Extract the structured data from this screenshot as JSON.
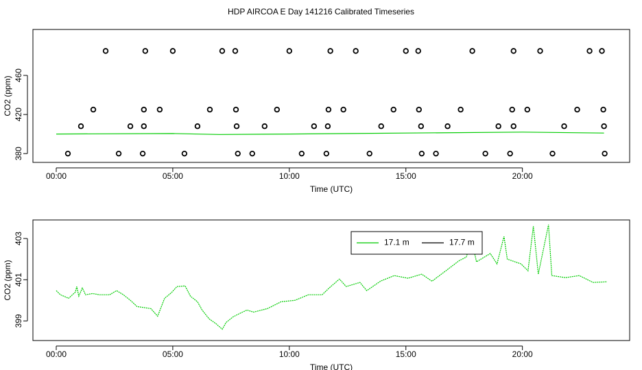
{
  "chart_data": [
    {
      "type": "scatter",
      "title": "HDP AIRCOA E  Day 141216  Calibrated Timeseries",
      "xlabel": "Time (UTC)",
      "ylabel": "CO2 (ppm)",
      "xlim": [
        -1.0,
        24.6
      ],
      "ylim": [
        371,
        507
      ],
      "xticks": [
        {
          "value": 0,
          "label": "00:00"
        },
        {
          "value": 5,
          "label": "05:00"
        },
        {
          "value": 10,
          "label": "10:00"
        },
        {
          "value": 15,
          "label": "15:00"
        },
        {
          "value": 20,
          "label": "20:00"
        }
      ],
      "yticks": [
        380,
        420,
        460
      ],
      "marker_color": "#000000",
      "x": [
        0.5,
        2.68,
        3.71,
        5.5,
        7.79,
        8.41,
        10.53,
        11.59,
        13.44,
        15.68,
        16.29,
        18.41,
        19.47,
        21.29,
        23.53,
        1.06,
        3.18,
        3.76,
        6.06,
        7.74,
        8.94,
        11.06,
        11.65,
        13.94,
        15.65,
        16.79,
        18.97,
        19.62,
        21.79,
        23.5,
        1.59,
        3.76,
        4.44,
        6.59,
        7.71,
        9.47,
        11.68,
        12.32,
        14.47,
        15.56,
        17.35,
        19.56,
        20.21,
        22.35,
        23.47,
        2.12,
        3.82,
        5.0,
        7.12,
        7.68,
        10.0,
        11.76,
        12.85,
        15.0,
        15.53,
        17.85,
        19.62,
        20.76,
        22.88,
        23.41
      ],
      "values": [
        380,
        380,
        380,
        380,
        380,
        380,
        380,
        380,
        380,
        380,
        380,
        380,
        380,
        380,
        380,
        408,
        408,
        408,
        408,
        408,
        408,
        408,
        408,
        408,
        408,
        408,
        408,
        408,
        408,
        408,
        425,
        425,
        425,
        425,
        425,
        425,
        425,
        425,
        425,
        425,
        425,
        425,
        425,
        425,
        425,
        485,
        485,
        485,
        485,
        485,
        485,
        485,
        485,
        485,
        485,
        485,
        485,
        485,
        485,
        485
      ],
      "line_color": "#00cc00",
      "line_x": [
        0,
        5,
        7,
        10,
        15,
        20,
        23.5
      ],
      "line_values": [
        400,
        400.5,
        399.5,
        400,
        401,
        402,
        401
      ]
    },
    {
      "type": "line",
      "xlabel": "Time (UTC)",
      "ylabel": "CO2 (ppm)",
      "xlim": [
        -1.0,
        24.6
      ],
      "ylim": [
        398.05,
        403.9
      ],
      "xticks": [
        {
          "value": 0,
          "label": "00:00"
        },
        {
          "value": 5,
          "label": "05:00"
        },
        {
          "value": 10,
          "label": "10:00"
        },
        {
          "value": 15,
          "label": "15:00"
        },
        {
          "value": 20,
          "label": "20:00"
        }
      ],
      "yticks": [
        399,
        401,
        403
      ],
      "legend": "top-right",
      "x": [
        0,
        0.18,
        0.53,
        0.82,
        0.88,
        0.97,
        1.12,
        1.26,
        1.56,
        1.85,
        2.29,
        2.59,
        2.88,
        3.18,
        3.47,
        4.06,
        4.35,
        4.65,
        4.94,
        5.18,
        5.53,
        5.76,
        6.06,
        6.26,
        6.56,
        6.85,
        7.12,
        7.29,
        7.59,
        7.88,
        8.18,
        8.47,
        9.06,
        9.65,
        10.24,
        10.82,
        11.41,
        11.71,
        12.15,
        12.44,
        13.03,
        13.32,
        13.91,
        14.5,
        15.09,
        15.68,
        16.12,
        16.71,
        17.29,
        17.59,
        17.82,
        18.03,
        18.62,
        18.91,
        19.21,
        19.35,
        19.94,
        20.24,
        20.47,
        20.68,
        21.12,
        21.26,
        21.85,
        22.44,
        23.03,
        23.62
      ],
      "series": [
        {
          "name": "17.1 m",
          "color": "#00cc00",
          "values": [
            400.47,
            400.27,
            400.1,
            400.4,
            400.67,
            400.2,
            400.6,
            400.27,
            400.33,
            400.27,
            400.27,
            400.47,
            400.27,
            400.0,
            399.7,
            399.6,
            399.23,
            400.1,
            400.37,
            400.67,
            400.7,
            400.2,
            399.93,
            399.53,
            399.1,
            398.87,
            398.6,
            398.93,
            399.2,
            399.37,
            399.53,
            399.43,
            399.6,
            399.93,
            400.0,
            400.27,
            400.27,
            400.6,
            401.03,
            400.67,
            400.87,
            400.47,
            400.93,
            401.2,
            401.07,
            401.27,
            400.93,
            401.43,
            401.93,
            402.1,
            402.93,
            401.87,
            402.27,
            401.77,
            403.1,
            402.0,
            401.77,
            401.43,
            403.6,
            401.27,
            403.67,
            401.2,
            401.1,
            401.2,
            400.87,
            400.9
          ]
        },
        {
          "name": "17.7 m",
          "color": "#000000",
          "values": [
            null,
            null,
            null,
            null,
            null,
            null,
            null,
            null,
            null,
            null,
            null,
            null,
            null,
            null,
            null,
            null,
            null,
            null,
            null,
            null,
            null,
            null,
            null,
            null,
            null,
            null,
            null,
            null,
            null,
            null,
            null,
            null,
            null,
            null,
            null,
            null,
            null,
            null,
            null,
            null,
            null,
            null,
            null,
            null,
            null,
            null,
            null,
            null,
            null,
            null,
            null,
            null,
            null,
            null,
            null,
            null,
            null,
            null,
            null,
            null,
            null,
            null,
            null,
            null,
            null,
            null
          ]
        }
      ]
    }
  ]
}
